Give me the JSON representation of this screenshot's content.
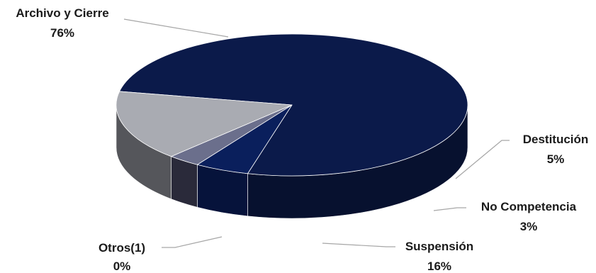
{
  "chart_data": {
    "type": "pie",
    "categories": [
      "Archivo y Cierre",
      "Destitución",
      "No Competencia",
      "Suspensión",
      "Otros(1)"
    ],
    "values": [
      76,
      5,
      3,
      16,
      0
    ],
    "value_labels": [
      "76%",
      "5%",
      "3%",
      "16%",
      "0%"
    ],
    "colors": [
      "#0b1a4a",
      "#0a1f5c",
      "#6b6f8c",
      "#a9abb2",
      "#c8c8c8"
    ],
    "side_colors": [
      "#07112f",
      "#06133b",
      "#2a2a3a",
      "#55565b",
      "#7d7d7d"
    ],
    "legend": "none",
    "style": "3d"
  }
}
